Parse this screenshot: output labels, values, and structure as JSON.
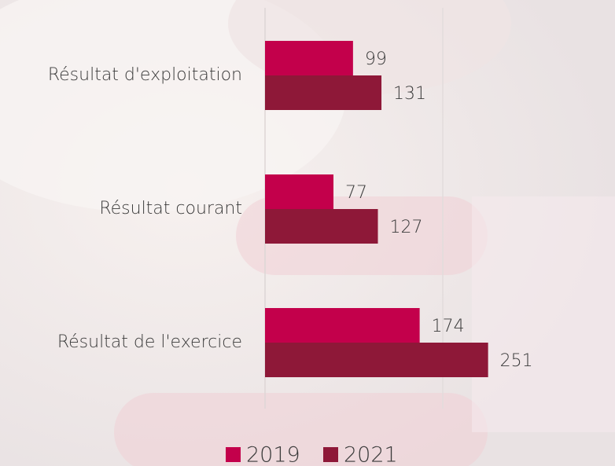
{
  "chart_data": {
    "type": "bar",
    "orientation": "horizontal",
    "categories": [
      "Résultat d'exploitation",
      "Résultat courant",
      "Résultat de l'exercice"
    ],
    "series": [
      {
        "name": "2019",
        "color": "#c3004b",
        "values": [
          99,
          77,
          174
        ]
      },
      {
        "name": "2021",
        "color": "#8e1838",
        "values": [
          131,
          127,
          251
        ]
      }
    ],
    "xlim": [
      0,
      300
    ],
    "legend": "bottom"
  }
}
